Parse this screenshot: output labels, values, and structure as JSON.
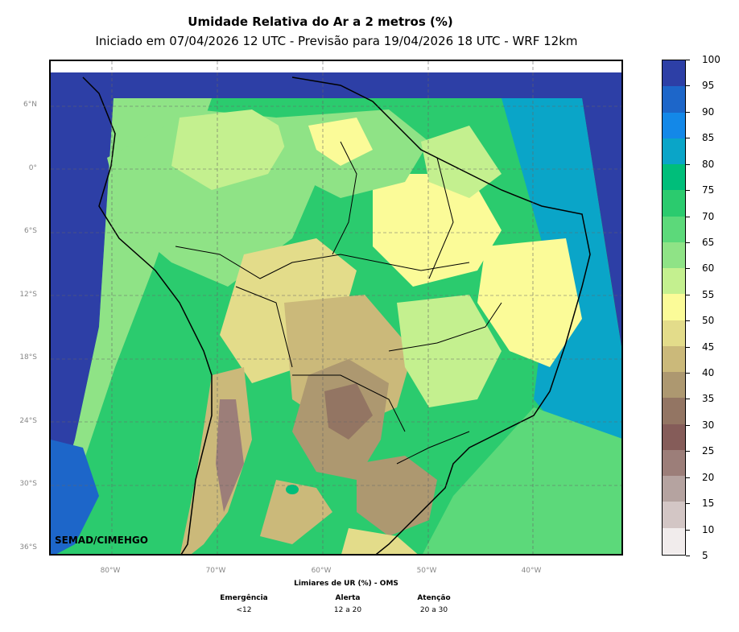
{
  "header": {
    "title": "Umidade Relativa do Ar a 2 metros (%)",
    "subtitle": "Iniciado em 07/04/2026 12 UTC - Previsão para 19/04/2026 18 UTC - WRF 12km"
  },
  "map": {
    "credit": "SEMAD/CIMEHGO",
    "lat_labels": [
      "6°N",
      "0°",
      "6°S",
      "12°S",
      "18°S",
      "24°S",
      "30°S",
      "36°S"
    ],
    "lon_labels": [
      "80°W",
      "70°W",
      "60°W",
      "50°W",
      "40°W"
    ]
  },
  "colorbar": {
    "labels": [
      "100",
      "95",
      "90",
      "85",
      "80",
      "75",
      "70",
      "65",
      "60",
      "55",
      "50",
      "45",
      "40",
      "35",
      "30",
      "25",
      "20",
      "15",
      "10",
      "5"
    ],
    "colors_top_to_bottom": [
      "#2d3fa6",
      "#1d66c9",
      "#1388e8",
      "#0aa5c8",
      "#00be7a",
      "#2bcb6e",
      "#5cd97a",
      "#8fe386",
      "#c4f08f",
      "#fbfb98",
      "#e3dc8a",
      "#cbb97a",
      "#ad9870",
      "#937563",
      "#855c59",
      "#9c7e79",
      "#b5a3a0",
      "#d3c6c5",
      "#f1ecec"
    ]
  },
  "thresholds": {
    "title": "Limiares de UR (%) - OMS",
    "levels": [
      {
        "name": "Emergência",
        "range": "<12"
      },
      {
        "name": "Alerta",
        "range": "12 a 20"
      },
      {
        "name": "Atenção",
        "range": "20 a 30"
      }
    ]
  }
}
